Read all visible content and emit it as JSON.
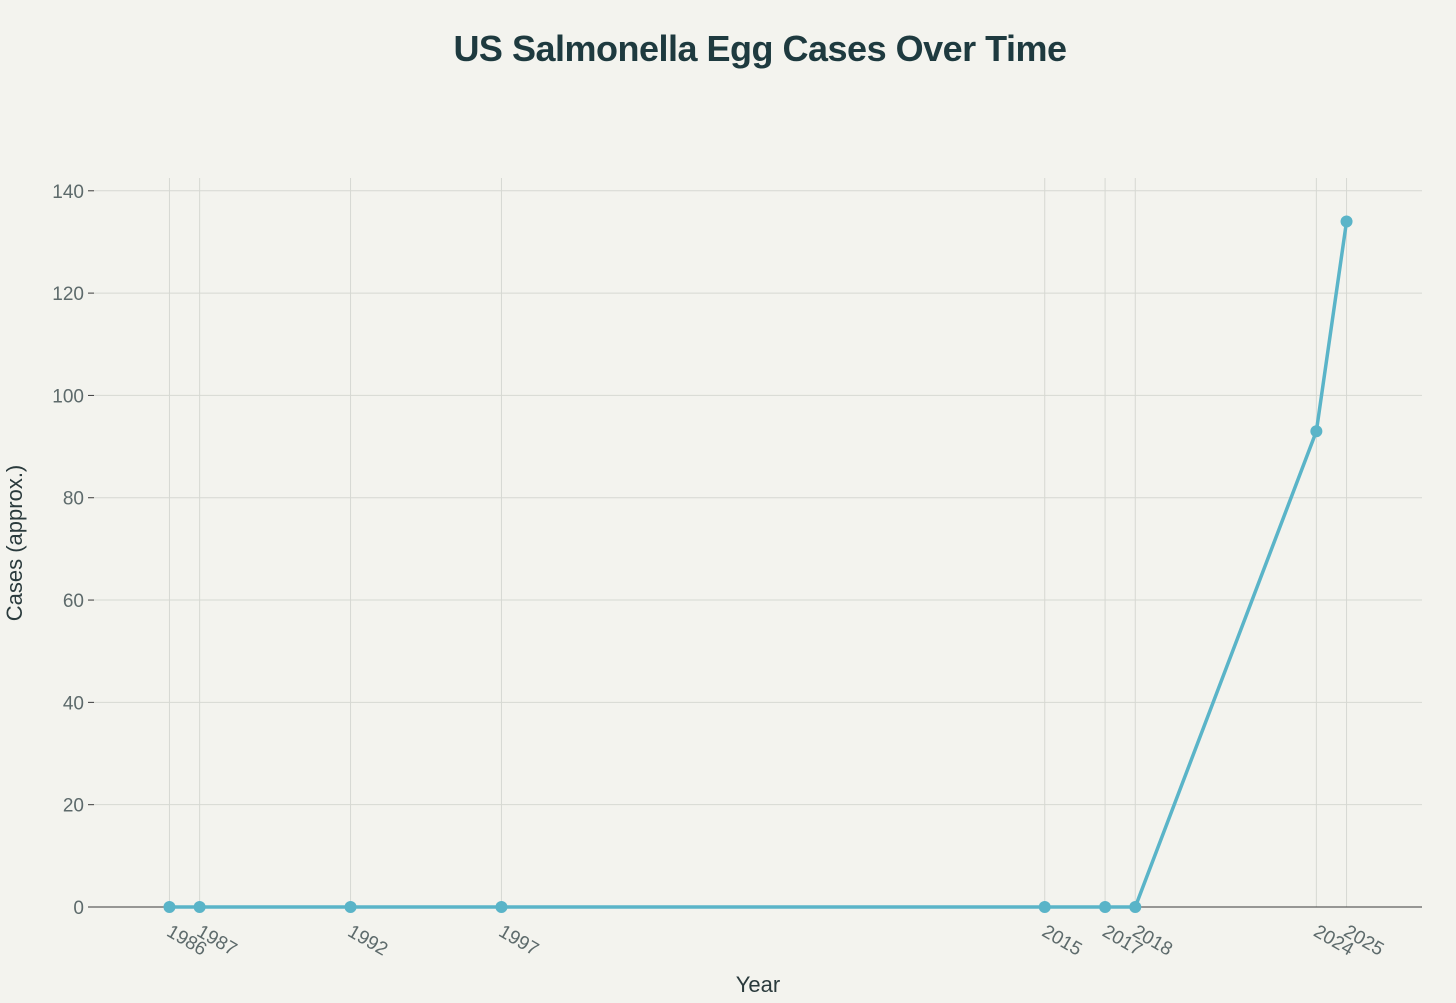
{
  "chart_data": {
    "type": "line",
    "title": "US Salmonella Egg Cases Over Time",
    "xlabel": "Year",
    "ylabel": "Cases (approx.)",
    "x": [
      1986,
      1987,
      1992,
      1997,
      2015,
      2017,
      2018,
      2024,
      2025
    ],
    "x_tick_labels": [
      "1986",
      "1987",
      "1992",
      "1997",
      "2015",
      "2017",
      "2018",
      "2024",
      "2025"
    ],
    "series": [
      {
        "values": [
          0,
          0,
          0,
          0,
          0,
          0,
          0,
          93,
          134
        ]
      }
    ],
    "y_ticks": [
      0,
      20,
      40,
      60,
      80,
      100,
      120,
      140
    ],
    "xlim": [
      1983.5,
      2027.5
    ],
    "ylim": [
      0,
      142.5
    ],
    "grid": true,
    "colors": {
      "line": "#5ab4c8",
      "background": "#f3f3ee",
      "grid": "#d6d8d2",
      "zero_line": "#3a3a3a"
    }
  }
}
